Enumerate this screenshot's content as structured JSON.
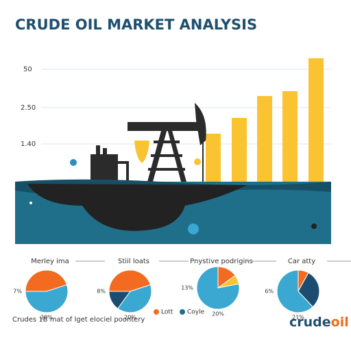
{
  "title": "CRUDE OIL MARKET ANALYSIS",
  "axis_labels": [
    "50",
    "2.50",
    "1.40"
  ],
  "pies": [
    {
      "title": "Merley ima",
      "left_label": "7%",
      "bottom_label": "20%",
      "values": [
        45,
        55
      ],
      "colors": [
        "#f26b21",
        "#3aa8d0"
      ]
    },
    {
      "title": "Stiil loats",
      "left_label": "8%",
      "bottom_label": "20%",
      "values": [
        45,
        40,
        15
      ],
      "colors": [
        "#f26b21",
        "#3aa8d0",
        "#1c4d70"
      ]
    },
    {
      "title": "Pnystive podrigins",
      "left_label": "13%",
      "bottom_label": "20%",
      "values": [
        15,
        7,
        78
      ],
      "colors": [
        "#f26b21",
        "#f9c332",
        "#3aa8d0"
      ]
    },
    {
      "title": "Car atty",
      "left_label": "6%",
      "bottom_label": "21%",
      "values": [
        8,
        30,
        62
      ],
      "colors": [
        "#f26b21",
        "#1c4d70",
        "#3aa8d0"
      ]
    }
  ],
  "legend": [
    {
      "label": "Lott",
      "color": "#f26b21"
    },
    {
      "label": "Coyle",
      "color": "#1f6f8b"
    }
  ],
  "footer": "Crudes 1B mat of lget elociel poontery",
  "logo": {
    "parts": [
      "crude",
      "oil"
    ]
  }
}
